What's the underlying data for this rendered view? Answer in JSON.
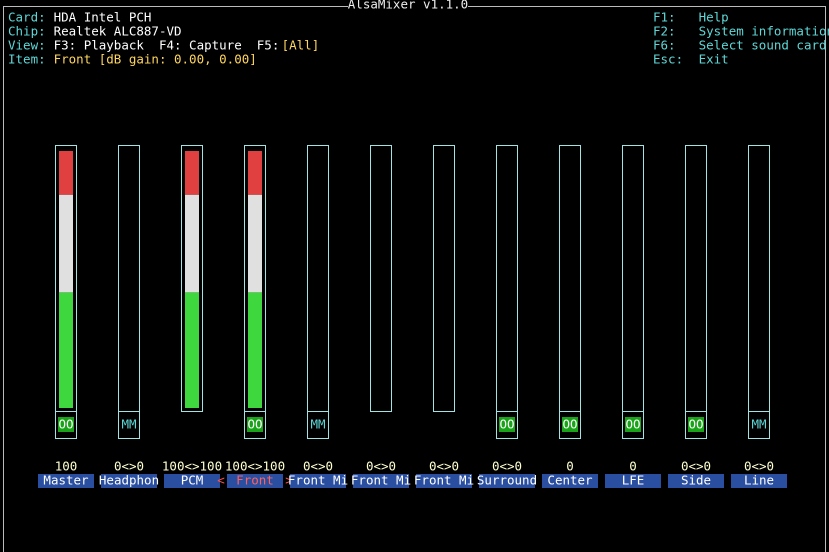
{
  "header": {
    "title": "AlsaMixer v1.1.0",
    "info": [
      {
        "label": "Card:",
        "value": "HDA Intel PCH"
      },
      {
        "label": "Chip:",
        "value": "Realtek ALC887-VD"
      },
      {
        "label": "View:",
        "value": "F3: Playback  F4: Capture  F5:",
        "extra": "[All]"
      },
      {
        "label": "Item:",
        "value": "Front [dB gain: 0.00, 0.00]"
      }
    ],
    "help": [
      {
        "key": "F1:",
        "text": "Help"
      },
      {
        "key": "F2:",
        "text": "System information"
      },
      {
        "key": "F6:",
        "text": "Select sound card"
      },
      {
        "key": "Esc:",
        "text": "Exit"
      }
    ]
  },
  "mixer": {
    "selected": 3,
    "channels": [
      {
        "name": "Master",
        "value_label": "100",
        "level": 100,
        "mute": "OO"
      },
      {
        "name": "Headphon",
        "value_label": "0<>0",
        "level": 0,
        "mute": "MM"
      },
      {
        "name": "PCM",
        "value_label": "100<>100",
        "level": 100,
        "mute": null
      },
      {
        "name": "Front",
        "value_label": "100<>100",
        "level": 100,
        "mute": "OO"
      },
      {
        "name": "Front Mi",
        "value_label": "0<>0",
        "level": 0,
        "mute": "MM"
      },
      {
        "name": "Front Mi",
        "value_label": "0<>0",
        "level": 0,
        "mute": null
      },
      {
        "name": "Front Mi",
        "value_label": "0<>0",
        "level": 0,
        "mute": null
      },
      {
        "name": "Surround",
        "value_label": "0<>0",
        "level": 0,
        "mute": "OO"
      },
      {
        "name": "Center",
        "value_label": "0",
        "level": 0,
        "mute": "OO"
      },
      {
        "name": "LFE",
        "value_label": "0",
        "level": 0,
        "mute": "OO"
      },
      {
        "name": "Side",
        "value_label": "0<>0",
        "level": 0,
        "mute": "OO"
      },
      {
        "name": "Line",
        "value_label": "0<>0",
        "level": 0,
        "mute": "MM"
      }
    ]
  }
}
